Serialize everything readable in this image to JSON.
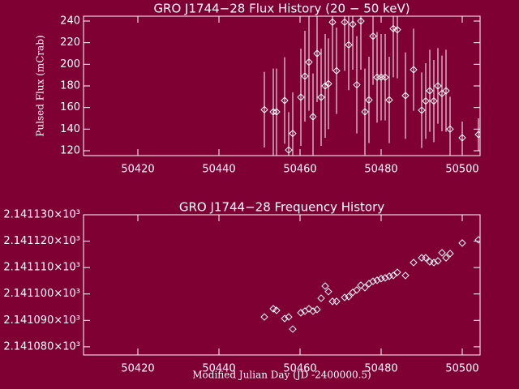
{
  "chart_data": [
    {
      "type": "scatter",
      "title": "GRO J1744−28 Flux History (20 − 50 keV)",
      "y_label": "Pulsed Flux (mCrab)",
      "x": [
        50451.2,
        50453.4,
        50454.2,
        50456.2,
        50457.2,
        50458.2,
        50460.2,
        50461.2,
        50462.2,
        50463.2,
        50464.2,
        50465.2,
        50466.2,
        50467,
        50468,
        50469,
        50471,
        50472,
        50473,
        50474,
        50475,
        50476,
        50477,
        50478,
        50479,
        50480,
        50481,
        50482,
        50483,
        50484,
        50486,
        50488,
        50490,
        50491,
        50492,
        50493,
        50494,
        50495,
        50496,
        50497,
        50500,
        50504
      ],
      "values": [
        158,
        156,
        156,
        166.5,
        120.7,
        136,
        169.5,
        189,
        202,
        151.5,
        210,
        169.5,
        180,
        182,
        239,
        194,
        239,
        218,
        237,
        181,
        240,
        156,
        167,
        226,
        188,
        188,
        188,
        167,
        233,
        232,
        171,
        195,
        157.5,
        166,
        175.5,
        166,
        180,
        173,
        175.5,
        140,
        132,
        135
      ],
      "errors": [
        35,
        40,
        40,
        40,
        35,
        38,
        45,
        42,
        45,
        40,
        45,
        45,
        48,
        42,
        45,
        40,
        45,
        42,
        42,
        45,
        45,
        40,
        40,
        45,
        42,
        40,
        40,
        40,
        45,
        45,
        40,
        38,
        35,
        35,
        38,
        38,
        35,
        35,
        38,
        30,
        15,
        15
      ],
      "color": "#ffffff",
      "xlim": [
        50406.6,
        50504.4
      ],
      "xticks": [
        50420,
        50440,
        50460,
        50480,
        50500
      ],
      "ylim": [
        115.5,
        244.5
      ],
      "yticks": [
        120,
        140,
        160,
        180,
        200,
        220,
        240
      ]
    },
    {
      "type": "scatter",
      "title": "GRO J1744−28 Frequency History",
      "x_label": "Modified Julian Day (JD -2400000.5)",
      "x": [
        50451.2,
        50453.4,
        50454.2,
        50456.2,
        50457.2,
        50458.2,
        50460.2,
        50461.2,
        50462.2,
        50463.2,
        50464.2,
        50465.2,
        50466.2,
        50467,
        50468,
        50469,
        50471,
        50472,
        50473,
        50474,
        50475,
        50476,
        50477,
        50478,
        50479,
        50480,
        50481,
        50482,
        50483,
        50484,
        50486,
        50488,
        50490,
        50491,
        50492,
        50493,
        50494,
        50495,
        50496,
        50497,
        50500,
        50504
      ],
      "values": [
        2141.0913,
        2141.0944,
        2141.0938,
        2141.0907,
        2141.0913,
        2141.0867,
        2141.0929,
        2141.0935,
        2141.0944,
        2141.0935,
        2141.0941,
        2141.0984,
        2141.103,
        2141.1009,
        2141.0972,
        2141.0972,
        2141.0987,
        2141.099,
        2141.1006,
        2141.1015,
        2141.1033,
        2141.1024,
        2141.1039,
        2141.1048,
        2141.1052,
        2141.1058,
        2141.1061,
        2141.1067,
        2141.107,
        2141.1082,
        2141.107,
        2141.1119,
        2141.1137,
        2141.1137,
        2141.1122,
        2141.1119,
        2141.1125,
        2141.1156,
        2141.1137,
        2141.1153,
        2141.1193,
        2141.1205
      ],
      "color": "#ffffff",
      "xlim": [
        50406.6,
        50504.4
      ],
      "xticks": [
        50420,
        50440,
        50460,
        50480,
        50500
      ],
      "ylim": [
        2141.0769,
        2141.13
      ],
      "yticks": [
        {
          "value": 2141.08,
          "label": "2.141080×10³"
        },
        {
          "value": 2141.09,
          "label": "2.141090×10³"
        },
        {
          "value": 2141.1,
          "label": "2.141100×10³"
        },
        {
          "value": 2141.11,
          "label": "2.141110×10³"
        },
        {
          "value": 2141.12,
          "label": "2.141120×10³"
        },
        {
          "value": 2141.13,
          "label": "2.141130×10³"
        }
      ]
    }
  ]
}
